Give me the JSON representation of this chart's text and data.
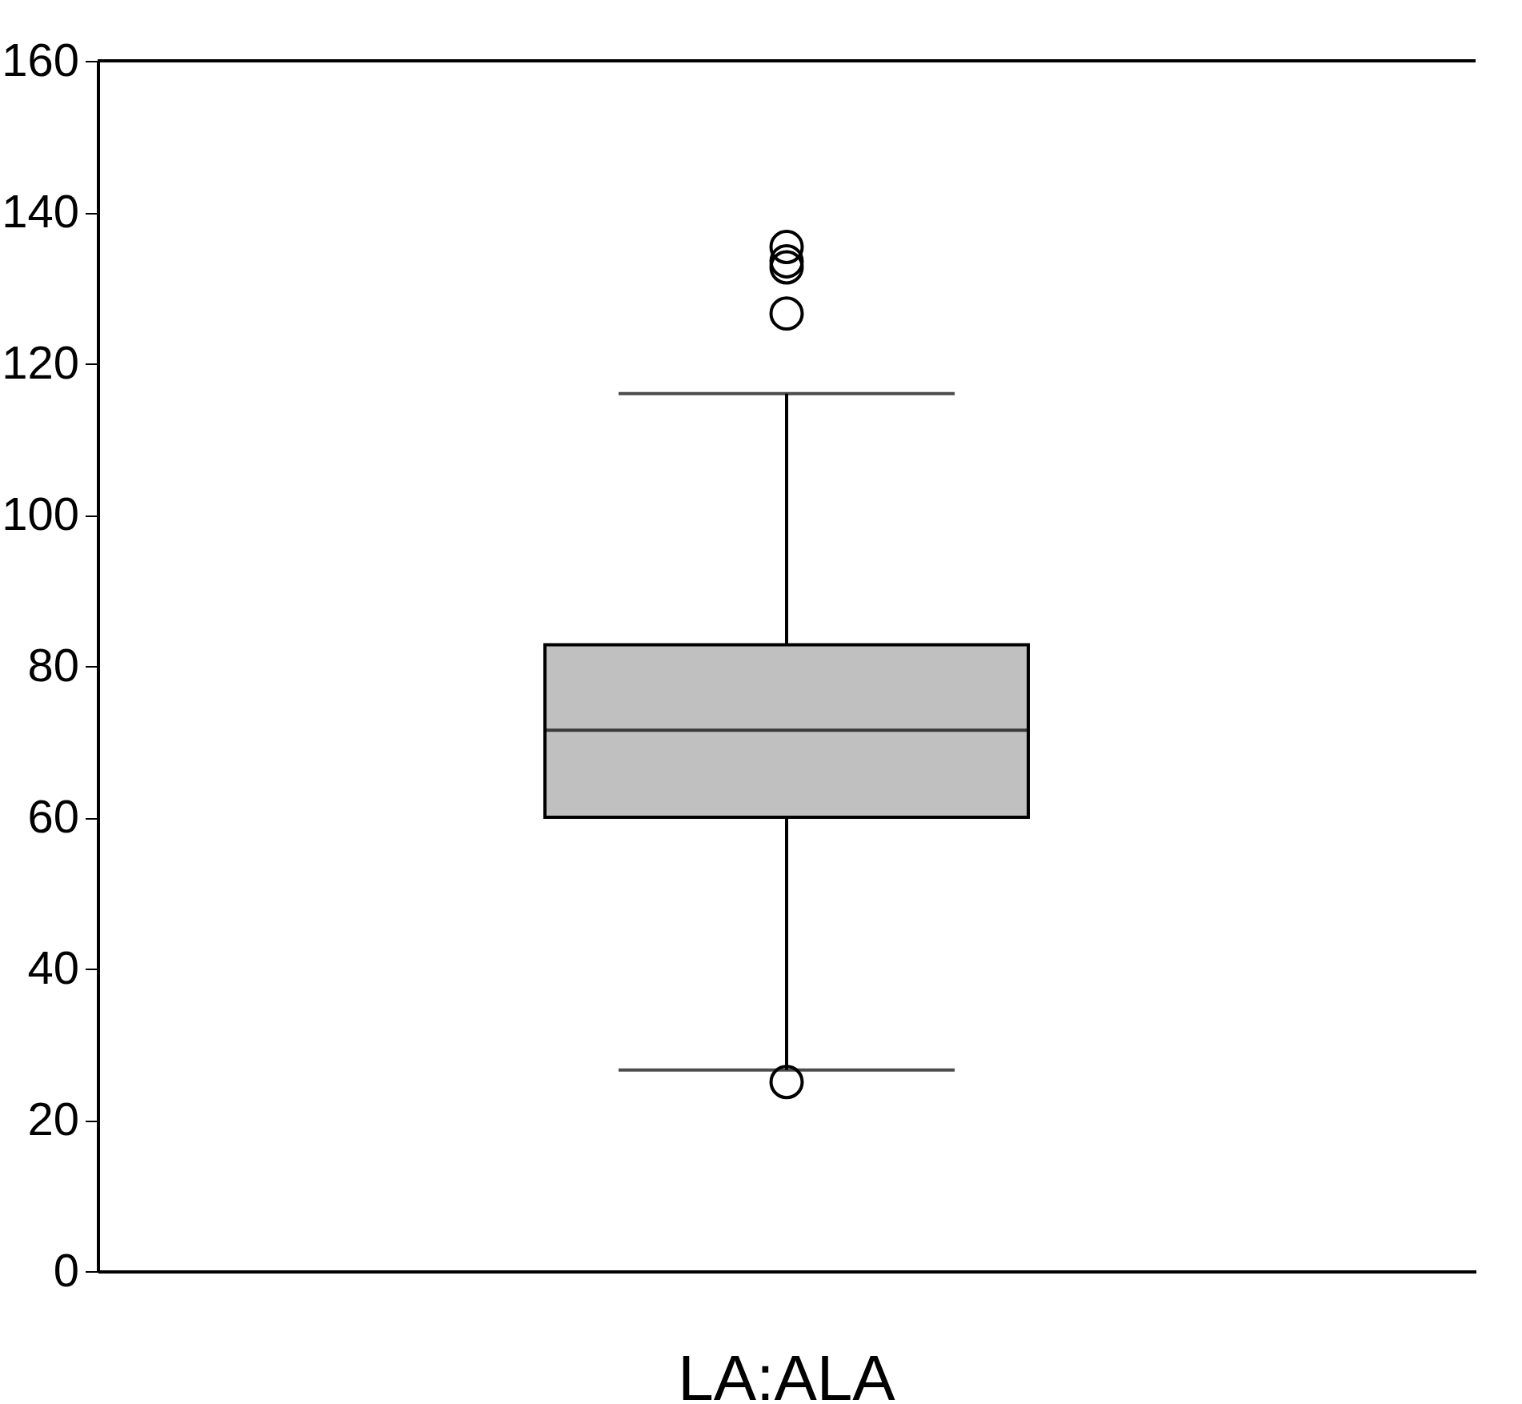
{
  "chart_data": {
    "type": "box",
    "categories": [
      "LA:ALA"
    ],
    "boxes": [
      {
        "low": 26.6,
        "q1": 60,
        "median": 71.5,
        "q3": 82.8,
        "high": 116,
        "outliers": [
          135.4,
          133.5,
          132.7,
          126.6,
          25
        ]
      }
    ],
    "color": "#c0c0c0",
    "ylim": [
      0,
      160
    ],
    "yticks": [
      0,
      20,
      40,
      60,
      80,
      100,
      120,
      140,
      160
    ],
    "grid": false
  }
}
